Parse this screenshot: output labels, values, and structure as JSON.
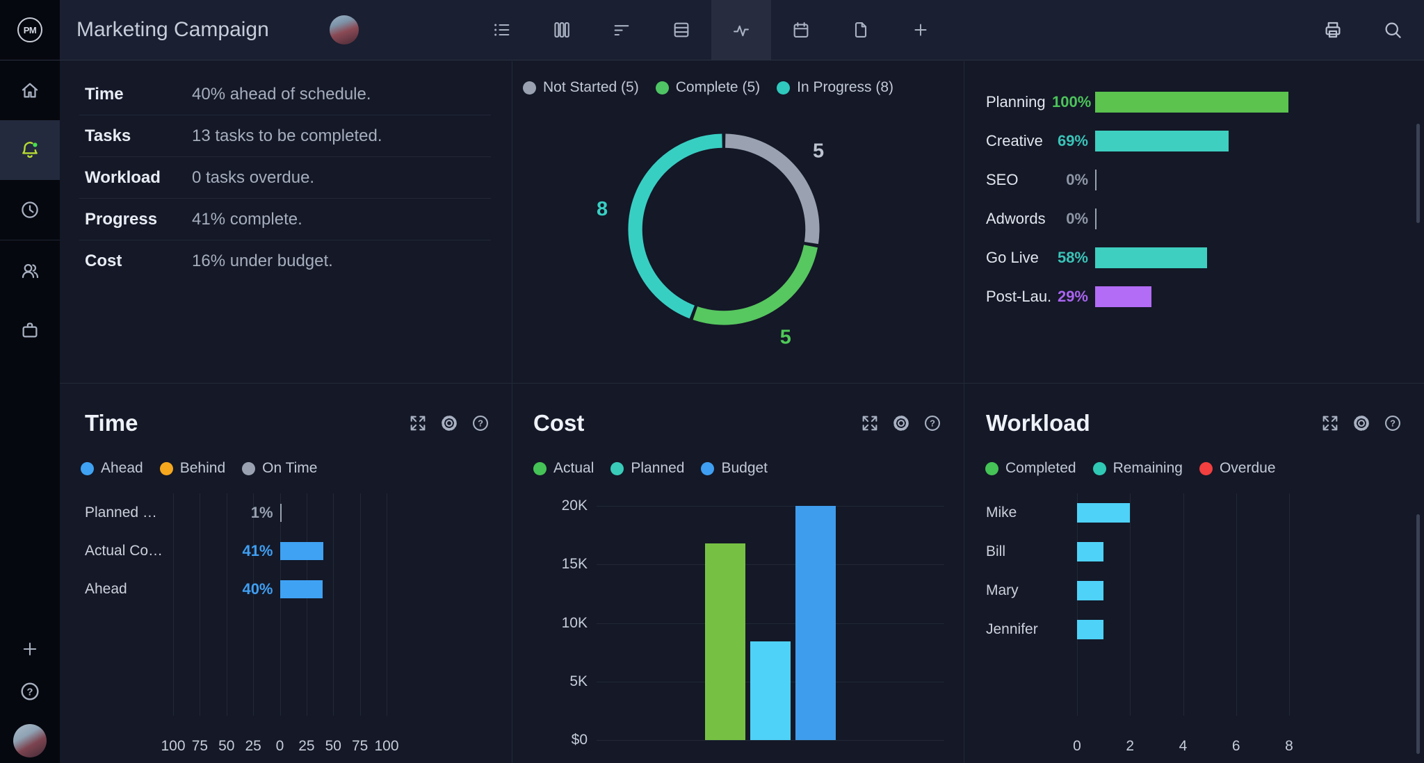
{
  "topbar": {
    "logo": "PM",
    "title": "Marketing Campaign",
    "view_tabs": [
      "list",
      "board",
      "gantt",
      "sheet",
      "activity",
      "calendar",
      "files",
      "add-view"
    ],
    "active_tab": "activity",
    "actions": [
      "print",
      "search"
    ]
  },
  "sidebar": {
    "items": [
      "home",
      "notifications",
      "recent",
      "team",
      "portfolio"
    ],
    "active_item": "notifications",
    "footer": [
      "add",
      "help",
      "profile"
    ]
  },
  "summary": {
    "rows": [
      {
        "label": "Time",
        "value": "40% ahead of schedule."
      },
      {
        "label": "Tasks",
        "value": "13 tasks to be completed."
      },
      {
        "label": "Workload",
        "value": "0 tasks overdue."
      },
      {
        "label": "Progress",
        "value": "41% complete."
      },
      {
        "label": "Cost",
        "value": "16% under budget."
      }
    ]
  },
  "panels": {
    "time": {
      "title": "Time"
    },
    "cost": {
      "title": "Cost"
    },
    "workload": {
      "title": "Workload"
    }
  },
  "chart_data": [
    {
      "id": "task-status-donut",
      "type": "pie",
      "donut": true,
      "labels": [
        "Not Started",
        "Complete",
        "In Progress"
      ],
      "values": [
        5,
        5,
        8
      ],
      "colors": [
        "#9aa2b1",
        "#57c75f",
        "#38cfc3"
      ],
      "label_colors": [
        "#bdc3cf",
        "#4fca57",
        "#38cfc3"
      ],
      "legend_position": "top",
      "legend": [
        {
          "label": "Not Started (5)",
          "color": "#9aa2b1"
        },
        {
          "label": "Complete (5)",
          "color": "#4fc464"
        },
        {
          "label": "In Progress (8)",
          "color": "#2fc9bd"
        }
      ]
    },
    {
      "id": "phase-progress",
      "type": "bar",
      "orientation": "horizontal",
      "xlim": [
        0,
        100
      ],
      "categories": [
        "Planning",
        "Creative",
        "SEO",
        "Adwords",
        "Go Live",
        "Post-Lau..."
      ],
      "values": [
        100,
        69,
        0,
        0,
        58,
        29
      ],
      "value_labels": [
        "100%",
        "69%",
        "0%",
        "0%",
        "58%",
        "29%"
      ],
      "bar_colors": [
        "#5bc34e",
        "#3ecfc0",
        "#9aa2b1",
        "#9aa2b1",
        "#3ecfc0",
        "#b36cf6"
      ],
      "value_colors": [
        "#4cc45a",
        "#3ac4b8",
        "#8f97a6",
        "#8f97a6",
        "#3ac4b8",
        "#a964f0"
      ]
    },
    {
      "id": "time-chart",
      "type": "bar",
      "orientation": "horizontal",
      "xlim": [
        -100,
        100
      ],
      "title": "Time",
      "legend": [
        {
          "label": "Ahead",
          "color": "#3fa2f3"
        },
        {
          "label": "Behind",
          "color": "#f5a71d"
        },
        {
          "label": "On Time",
          "color": "#9aa2b1"
        }
      ],
      "categories": [
        "Planned Com...",
        "Actual Compl...",
        "Ahead"
      ],
      "values": [
        1,
        41,
        40
      ],
      "value_labels": [
        "1%",
        "41%",
        "40%"
      ],
      "bar_colors": [
        "#9aa2b1",
        "#3fa2f3",
        "#3fa2f3"
      ],
      "value_colors": [
        "#98a1b0",
        "#3f9ff2",
        "#3f9ff2"
      ],
      "x_ticks": [
        "100",
        "75",
        "50",
        "25",
        "0",
        "25",
        "50",
        "75",
        "100"
      ],
      "grid": true
    },
    {
      "id": "cost-chart",
      "type": "bar",
      "orientation": "vertical",
      "ylim": [
        0,
        20000
      ],
      "title": "Cost",
      "legend": [
        {
          "label": "Actual",
          "color": "#45c356"
        },
        {
          "label": "Planned",
          "color": "#38ccb9"
        },
        {
          "label": "Budget",
          "color": "#3f9ff2"
        }
      ],
      "categories": [
        "Actual",
        "Planned",
        "Budget"
      ],
      "values": [
        16800,
        8400,
        20000
      ],
      "bar_colors": [
        "#76c144",
        "#4ed2f8",
        "#3f9ded"
      ],
      "y_ticks": [
        "$0",
        "5K",
        "10K",
        "15K",
        "20K"
      ],
      "grid": true
    },
    {
      "id": "workload-chart",
      "type": "bar",
      "orientation": "horizontal",
      "xlim": [
        0,
        10
      ],
      "title": "Workload",
      "legend": [
        {
          "label": "Completed",
          "color": "#45c356"
        },
        {
          "label": "Remaining",
          "color": "#2fc9b5"
        },
        {
          "label": "Overdue",
          "color": "#f23f3f"
        }
      ],
      "categories": [
        "Mike",
        "Bill",
        "Mary",
        "Jennifer"
      ],
      "values": [
        2,
        1,
        1,
        1
      ],
      "bar_colors": [
        "#4ed2f8",
        "#4ed2f8",
        "#4ed2f8",
        "#4ed2f8"
      ],
      "x_ticks": [
        "0",
        "2",
        "4",
        "6",
        "8"
      ],
      "grid": true
    }
  ]
}
